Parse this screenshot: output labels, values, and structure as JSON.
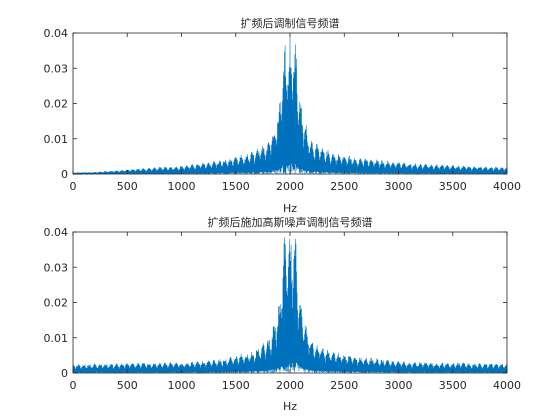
{
  "chart_data": [
    {
      "type": "line",
      "title": "扩频后调制信号频谱",
      "xlabel": "Hz",
      "ylabel": "",
      "xlim": [
        0,
        4000
      ],
      "ylim": [
        0,
        0.04
      ],
      "xticks": [
        "0",
        "500",
        "1000",
        "1500",
        "2000",
        "2500",
        "3000",
        "3500",
        "4000"
      ],
      "yticks": [
        "0",
        "0.01",
        "0.02",
        "0.03",
        "0.04"
      ],
      "grid": false,
      "series": [
        {
          "color": "#0072BD",
          "x": [
            0,
            200,
            400,
            600,
            800,
            1000,
            1100,
            1200,
            1300,
            1400,
            1500,
            1600,
            1700,
            1750,
            1800,
            1850,
            1900,
            1950,
            2000,
            2050,
            2100,
            2150,
            2200,
            2250,
            2300,
            2400,
            2500,
            2600,
            2700,
            2800,
            2900,
            3000,
            3200,
            3400,
            3600,
            3800,
            4000
          ],
          "y": [
            0.0003,
            0.0006,
            0.0011,
            0.0016,
            0.002,
            0.0024,
            0.0028,
            0.0032,
            0.0038,
            0.0042,
            0.005,
            0.0058,
            0.0072,
            0.0085,
            0.01,
            0.014,
            0.02,
            0.04,
            0.04,
            0.04,
            0.02,
            0.014,
            0.01,
            0.0085,
            0.0075,
            0.0062,
            0.0055,
            0.005,
            0.0045,
            0.0042,
            0.0038,
            0.0035,
            0.003,
            0.0027,
            0.0024,
            0.0022,
            0.002
          ]
        }
      ]
    },
    {
      "type": "line",
      "title": "扩频后施加高斯噪声调制信号频谱",
      "xlabel": "Hz",
      "ylabel": "",
      "xlim": [
        0,
        4000
      ],
      "ylim": [
        0,
        0.04
      ],
      "xticks": [
        "0",
        "500",
        "1000",
        "1500",
        "2000",
        "2500",
        "3000",
        "3500",
        "4000"
      ],
      "yticks": [
        "0",
        "0.01",
        "0.02",
        "0.03",
        "0.04"
      ],
      "grid": false,
      "series": [
        {
          "color": "#0072BD",
          "x": [
            0,
            200,
            400,
            600,
            800,
            1000,
            1100,
            1200,
            1300,
            1400,
            1500,
            1600,
            1700,
            1750,
            1800,
            1850,
            1900,
            1950,
            2000,
            2050,
            2100,
            2150,
            2200,
            2250,
            2300,
            2400,
            2500,
            2600,
            2700,
            2800,
            2900,
            3000,
            3200,
            3400,
            3600,
            3800,
            4000
          ],
          "y": [
            0.0025,
            0.0027,
            0.0028,
            0.003,
            0.003,
            0.0032,
            0.0033,
            0.0035,
            0.0038,
            0.0042,
            0.005,
            0.0058,
            0.0072,
            0.0085,
            0.01,
            0.014,
            0.02,
            0.04,
            0.04,
            0.04,
            0.02,
            0.014,
            0.01,
            0.0085,
            0.0075,
            0.0062,
            0.0055,
            0.005,
            0.0045,
            0.0042,
            0.0038,
            0.0035,
            0.0032,
            0.003,
            0.003,
            0.0028,
            0.0028
          ]
        }
      ]
    }
  ]
}
